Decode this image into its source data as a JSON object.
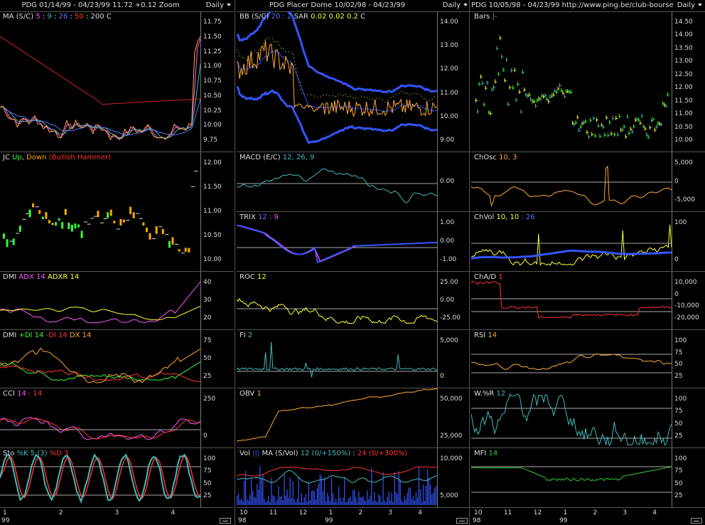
{
  "columns": [
    {
      "title": "PDG  01/14/99 - 04/23/99   11.72  +0.12   Zoom",
      "period": "Daily",
      "x_ticks": [
        "1",
        "2",
        "3",
        "4"
      ],
      "year": "99",
      "panes": [
        {
          "parts": [
            {
              "t": "MA",
              "c": "#dddddd"
            },
            {
              "t": " (S/C) ",
              "c": "#dddddd"
            },
            {
              "t": "5",
              "c": "#ff55ff"
            },
            {
              "t": " : ",
              "c": "#dddddd"
            },
            {
              "t": "9",
              "c": "#44bbbb"
            },
            {
              "t": " : ",
              "c": "#dddddd"
            },
            {
              "t": "26",
              "c": "#5577ff"
            },
            {
              "t": " : ",
              "c": "#dddddd"
            },
            {
              "t": "50",
              "c": "#ff3333"
            },
            {
              "t": " : ",
              "c": "#dddddd"
            },
            {
              "t": "200",
              "c": "#dddddd"
            },
            {
              "t": "   C ",
              "c": "#dddddd"
            }
          ],
          "y": [
            "11.75",
            "11.50",
            "11.25",
            "11.00",
            "10.75",
            "10.50",
            "10.25",
            "10.00",
            "9.75"
          ]
        },
        {
          "parts": [
            {
              "t": "JC",
              "c": "#dddddd"
            },
            {
              "t": " Up",
              "c": "#33ff33"
            },
            {
              "t": ", ",
              "c": "#dddddd"
            },
            {
              "t": "Down",
              "c": "#ffaa00"
            },
            {
              "t": "  (Bullish Hammer)",
              "c": "#ff3333"
            }
          ],
          "y": [
            "12.00",
            "11.50",
            "11.00",
            "10.50",
            "10.00"
          ]
        },
        {
          "parts": [
            {
              "t": "DMI",
              "c": "#dddddd"
            },
            {
              "t": "  ADX 14",
              "c": "#ff55ff"
            },
            {
              "t": "  ADXR 14",
              "c": "#ffff33"
            }
          ],
          "y": [
            "40",
            "30",
            "20"
          ]
        },
        {
          "parts": [
            {
              "t": "DMI",
              "c": "#dddddd"
            },
            {
              "t": "  +DI 14",
              "c": "#33ff33"
            },
            {
              "t": "  -DI 14",
              "c": "#ff3333"
            },
            {
              "t": "  DX 14",
              "c": "#ffaa33"
            }
          ],
          "y": [
            "75",
            "50",
            "25"
          ]
        },
        {
          "parts": [
            {
              "t": "CCI",
              "c": "#dddddd"
            },
            {
              "t": "  14",
              "c": "#ff55ff"
            },
            {
              "t": " : 14",
              "c": "#ff3333"
            }
          ],
          "y": [
            "250",
            "0"
          ]
        },
        {
          "parts": [
            {
              "t": "Sto",
              "c": "#dddddd"
            },
            {
              "t": "  %K 5 (3)",
              "c": "#44bbbb"
            },
            {
              "t": "  %D 3",
              "c": "#ff3333"
            }
          ],
          "y": [
            "100",
            "75",
            "50",
            "25"
          ]
        }
      ]
    },
    {
      "title": "PDG   Placer Dome   10/02/98 - 04/23/99",
      "period": "Daily",
      "x_ticks": [
        "10",
        "11",
        "12",
        "1",
        "2",
        "3",
        "4"
      ],
      "year": "98",
      "year2": "99",
      "panes": [
        {
          "parts": [
            {
              "t": "BB",
              "c": "#dddddd"
            },
            {
              "t": " (S/C) ",
              "c": "#dddddd"
            },
            {
              "t": "20",
              "c": "#5577ff"
            },
            {
              "t": " : 2",
              "c": "#5577ff"
            },
            {
              "t": "   SAR  ",
              "c": "#dddddd"
            },
            {
              "t": "0.02",
              "c": "#ffff33"
            },
            {
              "t": "  0.02",
              "c": "#ffff33"
            },
            {
              "t": "  0.2",
              "c": "#ffff33"
            },
            {
              "t": "    C ",
              "c": "#dddddd"
            }
          ],
          "y": [
            "14.00",
            "13.00",
            "12.00",
            "11.00",
            "10.00",
            "9.00"
          ]
        },
        {
          "parts": [
            {
              "t": "MACD",
              "c": "#dddddd"
            },
            {
              "t": " (E/C)  ",
              "c": "#dddddd"
            },
            {
              "t": "12, 26, 9",
              "c": "#44bbbb"
            }
          ],
          "y": [
            "0.00"
          ]
        },
        {
          "parts": [
            {
              "t": "TRIX",
              "c": "#dddddd"
            },
            {
              "t": "  12",
              "c": "#5577ff"
            },
            {
              "t": " : 9",
              "c": "#ff55ff"
            }
          ],
          "y": [
            "1.00",
            "0.00",
            "-1.00"
          ]
        },
        {
          "parts": [
            {
              "t": "ROC",
              "c": "#dddddd"
            },
            {
              "t": "  12",
              "c": "#ffff33"
            }
          ],
          "y": [
            "25.00",
            "0.00",
            "-25.00"
          ]
        },
        {
          "parts": [
            {
              "t": "FI",
              "c": "#dddddd"
            },
            {
              "t": "  2",
              "c": "#44bbbb"
            }
          ],
          "y": [
            "5,000",
            "0"
          ]
        },
        {
          "parts": [
            {
              "t": "OBV",
              "c": "#dddddd"
            },
            {
              "t": "  1",
              "c": "#ffaa33"
            }
          ],
          "y": [
            "50,000",
            "25,000"
          ]
        },
        {
          "parts": [
            {
              "t": "Vol",
              "c": "#dddddd"
            },
            {
              "t": "  |||",
              "c": "#3355ff"
            },
            {
              "t": "   MA",
              "c": "#dddddd"
            },
            {
              "t": " (S/Vol)  ",
              "c": "#dddddd"
            },
            {
              "t": "12 (0/+150%)",
              "c": "#44bbbb"
            },
            {
              "t": " : ",
              "c": "#dddddd"
            },
            {
              "t": "24 (0/+300%)",
              "c": "#ff3333"
            }
          ],
          "y": [
            "10,000",
            "5,000"
          ]
        }
      ]
    },
    {
      "title": "PDG   10/05/98 - 04/23/99    http://www.ping.be/club-bourse",
      "period": "Daily",
      "x_ticks": [
        "10",
        "11",
        "12",
        "1",
        "2",
        "3",
        "4"
      ],
      "year": "98",
      "year2": "99",
      "panes": [
        {
          "parts": [
            {
              "t": "Bars",
              "c": "#dddddd"
            },
            {
              "t": "  |-",
              "c": "#44bbbb"
            }
          ],
          "y": [
            "14.50",
            "14.00",
            "13.50",
            "13.00",
            "12.50",
            "12.00",
            "11.50",
            "11.00",
            "10.50",
            "10.00"
          ]
        },
        {
          "parts": [
            {
              "t": "ChOsc",
              "c": "#dddddd"
            },
            {
              "t": "  10, 3",
              "c": "#ffaa33"
            }
          ],
          "y": [
            "5,000",
            "0",
            "-5,000"
          ]
        },
        {
          "parts": [
            {
              "t": "ChVol",
              "c": "#dddddd"
            },
            {
              "t": "  10, 10",
              "c": "#ffff33"
            },
            {
              "t": " : 26",
              "c": "#5577ff"
            }
          ],
          "y": [
            "100",
            "0"
          ]
        },
        {
          "parts": [
            {
              "t": "ChA/D",
              "c": "#dddddd"
            },
            {
              "t": "  1",
              "c": "#ff3333"
            }
          ],
          "y": [
            "10,000",
            "0",
            "-10,000",
            "-20,000"
          ]
        },
        {
          "parts": [
            {
              "t": "RSI",
              "c": "#dddddd"
            },
            {
              "t": "  14",
              "c": "#ffaa33"
            }
          ],
          "y": [
            "100",
            "75",
            "50",
            "25"
          ]
        },
        {
          "parts": [
            {
              "t": "W.%R",
              "c": "#dddddd"
            },
            {
              "t": "  12",
              "c": "#44bbbb"
            }
          ],
          "y": [
            "100",
            "75",
            "50",
            "25"
          ]
        },
        {
          "parts": [
            {
              "t": "MFI",
              "c": "#dddddd"
            },
            {
              "t": "  14",
              "c": "#33cc33"
            }
          ],
          "y": [
            "100",
            "75",
            "50",
            "25"
          ]
        }
      ]
    }
  ]
}
